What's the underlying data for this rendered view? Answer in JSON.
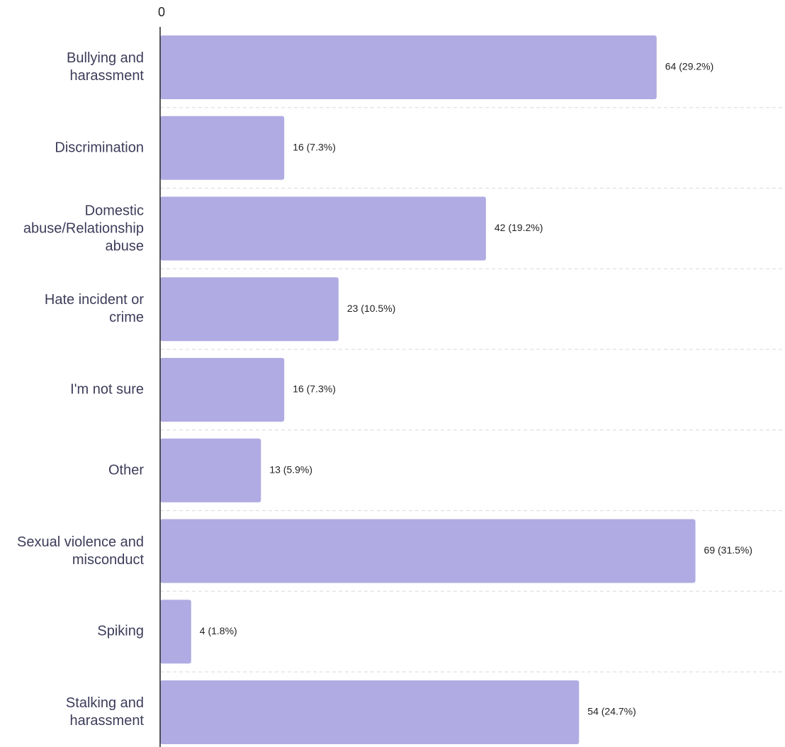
{
  "chart_data": {
    "type": "bar",
    "orientation": "horizontal",
    "categories": [
      "Bullying and harassment",
      "Discrimination",
      "Domestic abuse/Relationship abuse",
      "Hate incident or crime",
      "I'm not sure",
      "Other",
      "Sexual violence and misconduct",
      "Spiking",
      "Stalking and harassment"
    ],
    "values": [
      64,
      16,
      42,
      23,
      16,
      13,
      69,
      4,
      54
    ],
    "value_labels": [
      "64 (29.2%)",
      "16 (7.3%)",
      "42 (19.2%)",
      "23 (10.5%)",
      "16 (7.3%)",
      "13 (5.9%)",
      "69 (31.5%)",
      "4 (1.8%)",
      "54 (24.7%)"
    ],
    "color": "#b0abe2",
    "xlim": [
      0,
      80
    ],
    "xticks": [
      0
    ]
  }
}
